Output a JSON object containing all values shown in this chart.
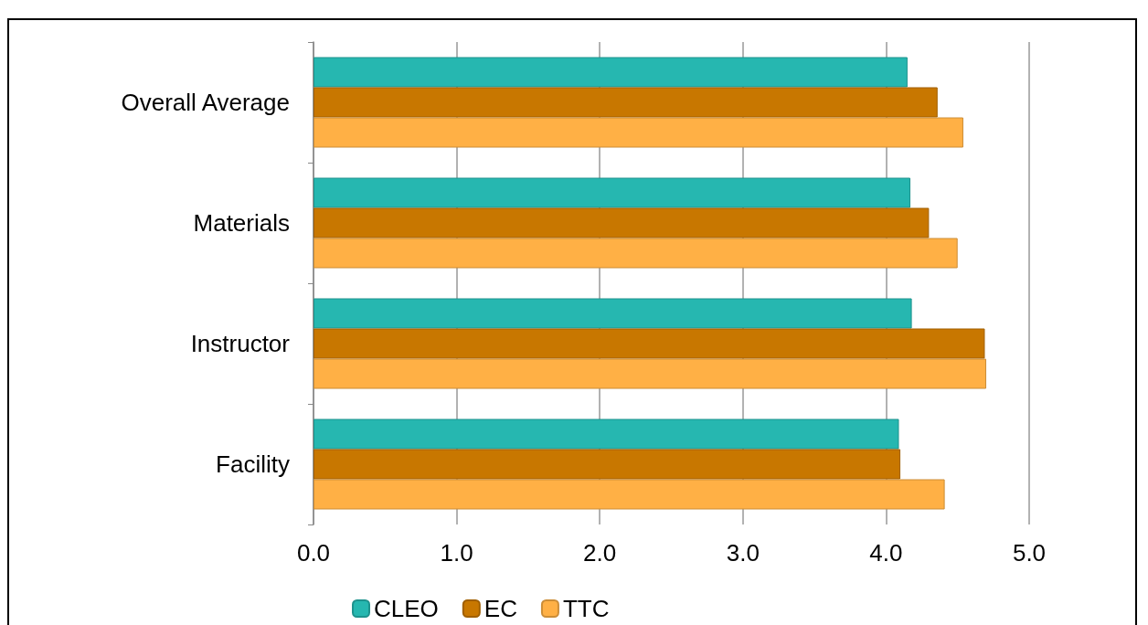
{
  "chart_data": {
    "type": "bar",
    "orientation": "horizontal",
    "categories": [
      "Overall Average",
      "Materials",
      "Instructor",
      "Facility"
    ],
    "series": [
      {
        "name": "CLEO",
        "color": "#26b7b0",
        "values": [
          4.15,
          4.17,
          4.18,
          4.09
        ]
      },
      {
        "name": "EC",
        "color": "#c87700",
        "values": [
          4.36,
          4.3,
          4.69,
          4.1
        ]
      },
      {
        "name": "TTC",
        "color": "#ffb045",
        "values": [
          4.54,
          4.5,
          4.7,
          4.41
        ]
      }
    ],
    "xlim": [
      0,
      5
    ],
    "xticks": [
      {
        "value": 0,
        "label": "0.0"
      },
      {
        "value": 1,
        "label": "1.0"
      },
      {
        "value": 2,
        "label": "2.0"
      },
      {
        "value": 3,
        "label": "3.0"
      },
      {
        "value": 4,
        "label": "4.0"
      },
      {
        "value": 5,
        "label": "5.0"
      }
    ],
    "grid": "x",
    "legend": "bottom"
  }
}
